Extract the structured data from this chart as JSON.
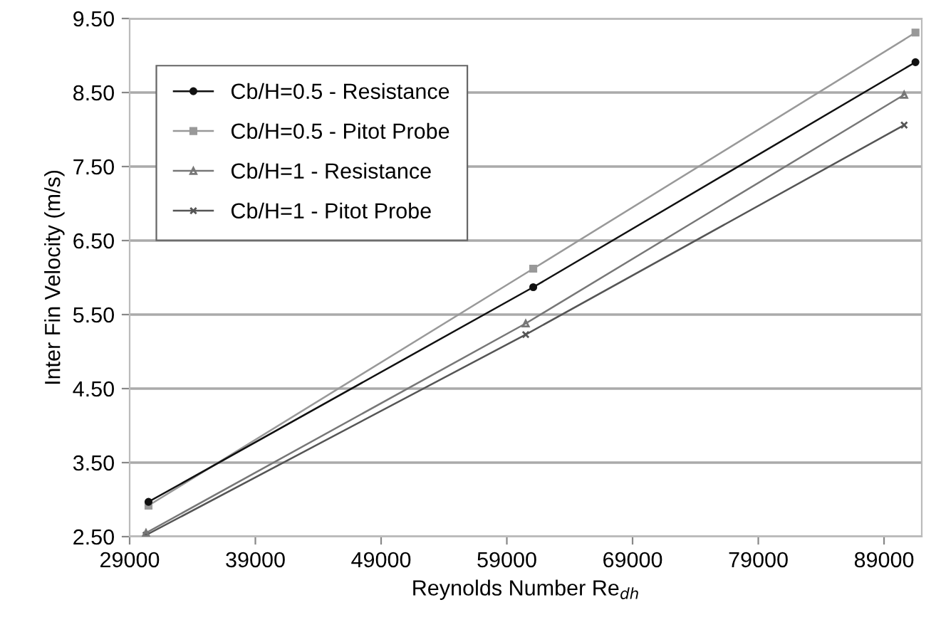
{
  "chart_data": {
    "type": "line",
    "xlabel": "Reynolds Number Re$_{dh}$",
    "ylabel": "Inter Fin Velocity (m/s)",
    "xlim": [
      29000,
      92000
    ],
    "xticks": [
      29000,
      39000,
      49000,
      59000,
      69000,
      79000,
      89000
    ],
    "ylim": [
      2.5,
      9.5
    ],
    "yticks": [
      {
        "value": 2.5,
        "label": "2.50"
      },
      {
        "value": 3.5,
        "label": "3.50"
      },
      {
        "value": 4.5,
        "label": "4.50"
      },
      {
        "value": 5.5,
        "label": "5.50"
      },
      {
        "value": 6.5,
        "label": "6.50"
      },
      {
        "value": 7.5,
        "label": "7.50"
      },
      {
        "value": 8.5,
        "label": "8.50"
      },
      {
        "value": 9.5,
        "label": "9.50"
      }
    ],
    "grid": "y",
    "legend": "top left",
    "line_style": "solid",
    "series": [
      {
        "name": "Cb/H=0.5 - Resistance",
        "color": "#111111",
        "marker": "circle",
        "x": [
          30500,
          61100,
          91500
        ],
        "values": [
          2.97,
          5.87,
          8.91
        ]
      },
      {
        "name": "Cb/H=0.5 - Pitot Probe",
        "color": "#999999",
        "marker": "square",
        "x": [
          30500,
          61100,
          91500
        ],
        "values": [
          2.92,
          6.12,
          9.31
        ]
      },
      {
        "name": "Cb/H=1 - Resistance",
        "color": "#777777",
        "marker": "triangle",
        "x": [
          30300,
          60500,
          90600
        ],
        "values": [
          2.55,
          5.38,
          8.47
        ]
      },
      {
        "name": "Cb/H=1 - Pitot Probe",
        "color": "#555555",
        "marker": "cross",
        "x": [
          30300,
          60500,
          90600
        ],
        "values": [
          2.52,
          5.23,
          8.06
        ]
      }
    ]
  }
}
